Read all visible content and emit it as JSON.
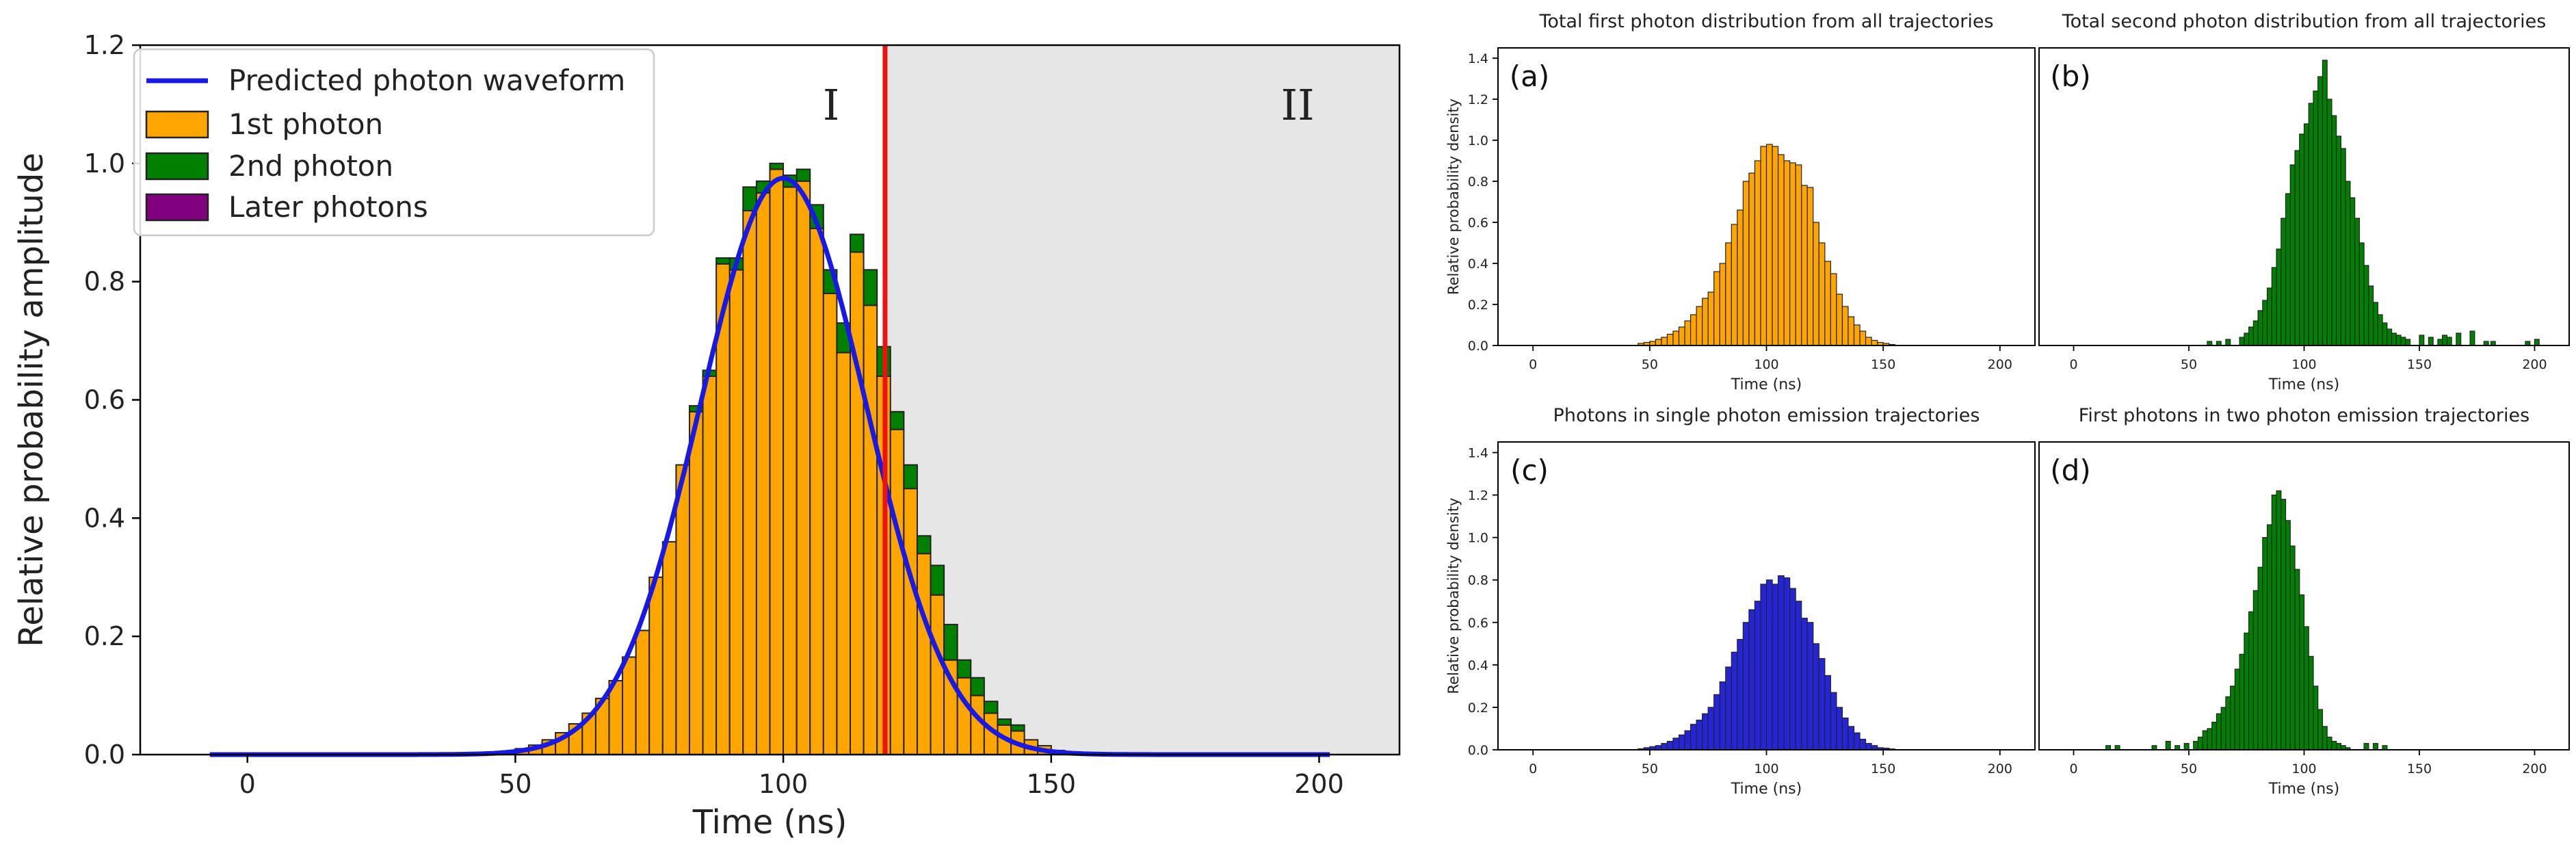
{
  "colors": {
    "first": "#FFA500",
    "second": "#008000",
    "later": "#800080",
    "single": "#2525D8",
    "waveform": "#1919E6",
    "cutoff": "#EE1111",
    "region2": "#E6E6E6",
    "edge": "#222222"
  },
  "chart_data": [
    {
      "id": "main",
      "type": "bar",
      "stacked": true,
      "xlabel": "Time (ns)",
      "ylabel": "Relative probability amplitude",
      "xlim": [
        -20,
        215
      ],
      "ylim": [
        0,
        1.2
      ],
      "xticks": [
        0,
        50,
        100,
        150,
        200
      ],
      "yticks": [
        0.0,
        0.2,
        0.4,
        0.6,
        0.8,
        1.0,
        1.2
      ],
      "bin_width": 2.5,
      "region_labels": [
        "I",
        "II"
      ],
      "cutoff_time": 119,
      "region_II_range": [
        119,
        215
      ],
      "legend_position": "top-left",
      "legend": [
        "Predicted photon waveform",
        "1st photon",
        "2nd photon",
        "Later photons"
      ],
      "waveform": {
        "name": "Predicted photon waveform",
        "peak_time": 100,
        "peak_value": 0.975,
        "sigma_ns": 15.5,
        "x_range": [
          -7,
          202
        ]
      },
      "series": [
        {
          "name": "1st photon",
          "color_key": "first",
          "bins_start": [
            45,
            47.5,
            50,
            52.5,
            55,
            57.5,
            60,
            62.5,
            65,
            67.5,
            70,
            72.5,
            75,
            77.5,
            80,
            82.5,
            85,
            87.5,
            90,
            92.5,
            95,
            97.5,
            100,
            102.5,
            105,
            107.5,
            110,
            112.5,
            115,
            117.5,
            120,
            122.5,
            125,
            127.5,
            130,
            132.5,
            135,
            137.5,
            140,
            142.5,
            145,
            147.5,
            150,
            152.5
          ],
          "values": [
            0.004,
            0.006,
            0.01,
            0.016,
            0.025,
            0.037,
            0.052,
            0.07,
            0.095,
            0.125,
            0.165,
            0.21,
            0.3,
            0.36,
            0.49,
            0.58,
            0.64,
            0.83,
            0.82,
            0.92,
            0.95,
            0.99,
            0.96,
            0.97,
            0.89,
            0.78,
            0.68,
            0.85,
            0.76,
            0.64,
            0.55,
            0.45,
            0.34,
            0.27,
            0.16,
            0.13,
            0.1,
            0.07,
            0.05,
            0.04,
            0.025,
            0.015,
            0.007,
            0.004
          ]
        },
        {
          "name": "2nd photon",
          "color_key": "second",
          "bins_start": [
            45,
            47.5,
            50,
            52.5,
            55,
            57.5,
            60,
            62.5,
            65,
            67.5,
            70,
            72.5,
            75,
            77.5,
            80,
            82.5,
            85,
            87.5,
            90,
            92.5,
            95,
            97.5,
            100,
            102.5,
            105,
            107.5,
            110,
            112.5,
            115,
            117.5,
            120,
            122.5,
            125,
            127.5,
            130,
            132.5,
            135,
            137.5,
            140,
            142.5,
            145,
            147.5,
            150,
            152.5
          ],
          "values": [
            0,
            0,
            0,
            0,
            0,
            0,
            0,
            0,
            0,
            0,
            0,
            0,
            0,
            0,
            0,
            0.01,
            0.01,
            0.01,
            0.02,
            0.04,
            0.02,
            0.01,
            0.02,
            0.02,
            0.04,
            0.04,
            0.05,
            0.03,
            0.06,
            0.05,
            0.03,
            0.04,
            0.03,
            0.05,
            0.06,
            0.03,
            0.03,
            0.02,
            0.01,
            0.01,
            0,
            0,
            0,
            0
          ]
        },
        {
          "name": "Later photons",
          "color_key": "later",
          "values": []
        }
      ]
    },
    {
      "id": "a",
      "panel_label": "(a)",
      "type": "bar",
      "title": "Total first photon distribution from all trajectories",
      "xlabel": "Time (ns)",
      "ylabel": "Relative probability density",
      "xlim": [
        -15,
        215
      ],
      "ylim": [
        0,
        1.45
      ],
      "xticks": [
        0,
        50,
        100,
        150,
        200
      ],
      "yticks": [
        0.0,
        0.2,
        0.4,
        0.6,
        0.8,
        1.0,
        1.2,
        1.4
      ],
      "color_key": "first",
      "bin_width": 2.5,
      "bins_start_first": 45,
      "values": [
        0.01,
        0.015,
        0.02,
        0.03,
        0.04,
        0.055,
        0.07,
        0.09,
        0.12,
        0.15,
        0.19,
        0.23,
        0.26,
        0.36,
        0.4,
        0.5,
        0.59,
        0.66,
        0.8,
        0.84,
        0.9,
        0.97,
        0.98,
        0.97,
        0.93,
        0.9,
        0.89,
        0.88,
        0.78,
        0.77,
        0.6,
        0.5,
        0.41,
        0.35,
        0.25,
        0.19,
        0.14,
        0.1,
        0.07,
        0.04,
        0.025,
        0.015,
        0.01,
        0.005
      ]
    },
    {
      "id": "b",
      "panel_label": "(b)",
      "type": "bar",
      "title": "Total second photon distribution from all trajectories",
      "xlabel": "Time (ns)",
      "ylabel": "",
      "xlim": [
        -15,
        215
      ],
      "ylim": [
        0,
        1.45
      ],
      "xticks": [
        0,
        50,
        100,
        150,
        200
      ],
      "yticks": [],
      "color_key": "second",
      "bin_width": 2,
      "sparse_points": [
        [
          58,
          0.02
        ],
        [
          62,
          0.02
        ],
        [
          66,
          0.03
        ],
        [
          200,
          0.03
        ],
        [
          196,
          0.02
        ],
        [
          181,
          0.02
        ],
        [
          178,
          0.02
        ],
        [
          172,
          0.07
        ],
        [
          166,
          0.06
        ],
        [
          162,
          0.04
        ],
        [
          160,
          0.05
        ],
        [
          158,
          0.03
        ],
        [
          154,
          0.04
        ],
        [
          150,
          0.05
        ]
      ],
      "bins_start_first": 72,
      "values": [
        0.04,
        0.06,
        0.09,
        0.12,
        0.17,
        0.22,
        0.28,
        0.38,
        0.47,
        0.62,
        0.74,
        0.88,
        0.95,
        1.03,
        1.08,
        1.18,
        1.24,
        1.31,
        1.39,
        1.2,
        1.12,
        1.02,
        0.96,
        0.8,
        0.72,
        0.62,
        0.5,
        0.39,
        0.29,
        0.21,
        0.15,
        0.11,
        0.08,
        0.06,
        0.05,
        0.04,
        0.03
      ]
    },
    {
      "id": "c",
      "panel_label": "(c)",
      "type": "bar",
      "title": "Photons in single photon emission trajectories",
      "xlabel": "Time (ns)",
      "ylabel": "Relative probability density",
      "xlim": [
        -15,
        215
      ],
      "ylim": [
        0,
        1.45
      ],
      "xticks": [
        0,
        50,
        100,
        150,
        200
      ],
      "yticks": [
        0.0,
        0.2,
        0.4,
        0.6,
        0.8,
        1.0,
        1.2,
        1.4
      ],
      "color_key": "single",
      "bin_width": 2.5,
      "bins_start_first": 45,
      "values": [
        0.005,
        0.01,
        0.015,
        0.02,
        0.03,
        0.04,
        0.055,
        0.07,
        0.09,
        0.12,
        0.14,
        0.17,
        0.2,
        0.26,
        0.32,
        0.39,
        0.46,
        0.52,
        0.6,
        0.66,
        0.7,
        0.78,
        0.8,
        0.78,
        0.82,
        0.81,
        0.76,
        0.7,
        0.62,
        0.6,
        0.5,
        0.43,
        0.35,
        0.27,
        0.2,
        0.15,
        0.11,
        0.08,
        0.05,
        0.03,
        0.02,
        0.01,
        0.008,
        0.004
      ]
    },
    {
      "id": "d",
      "panel_label": "(d)",
      "type": "bar",
      "title": "First photons in two photon emission trajectories",
      "xlabel": "Time (ns)",
      "ylabel": "",
      "xlim": [
        -15,
        215
      ],
      "ylim": [
        0,
        1.45
      ],
      "xticks": [
        0,
        50,
        100,
        150,
        200
      ],
      "yticks": [],
      "color_key": "second",
      "bin_width": 2,
      "sparse_points": [
        [
          14,
          0.02
        ],
        [
          18,
          0.02
        ],
        [
          34,
          0.02
        ],
        [
          40,
          0.04
        ],
        [
          44,
          0.02
        ],
        [
          48,
          0.03
        ],
        [
          126,
          0.03
        ],
        [
          130,
          0.03
        ],
        [
          134,
          0.02
        ]
      ],
      "bins_start_first": 52,
      "values": [
        0.04,
        0.06,
        0.09,
        0.1,
        0.13,
        0.17,
        0.2,
        0.25,
        0.3,
        0.38,
        0.45,
        0.55,
        0.65,
        0.75,
        0.86,
        1.0,
        1.06,
        1.2,
        1.22,
        1.18,
        1.08,
        0.96,
        0.85,
        0.73,
        0.58,
        0.44,
        0.3,
        0.19,
        0.11,
        0.06,
        0.04,
        0.03,
        0.02,
        0.01
      ]
    }
  ]
}
